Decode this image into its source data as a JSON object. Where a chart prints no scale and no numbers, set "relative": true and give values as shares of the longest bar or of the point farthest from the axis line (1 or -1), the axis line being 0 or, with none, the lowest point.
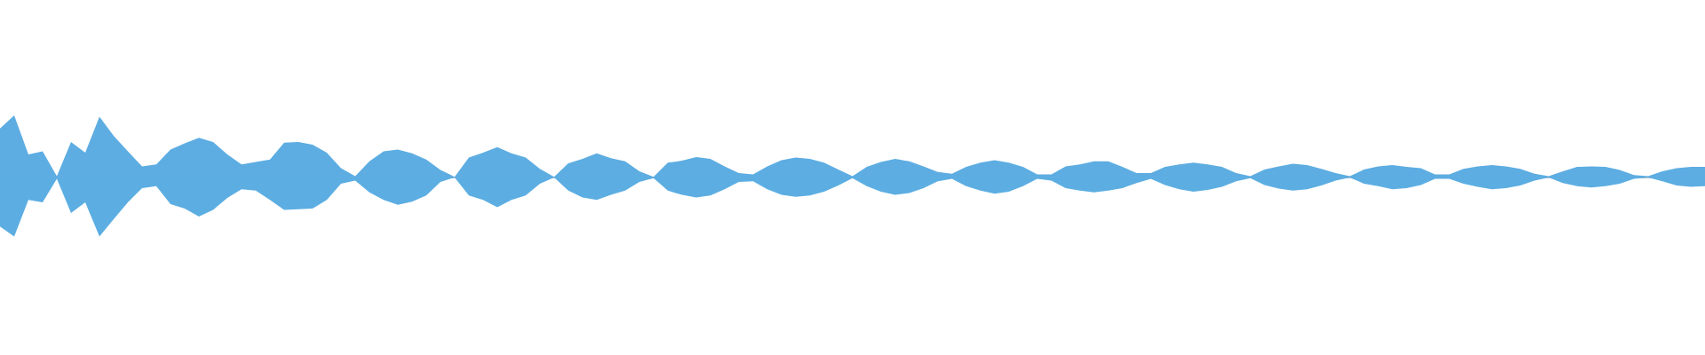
{
  "chart_data": {
    "type": "area",
    "relative": true,
    "categories": [
      null,
      null,
      null,
      null,
      null,
      null,
      null,
      null,
      null,
      null,
      null,
      null,
      null,
      null,
      null,
      null,
      null,
      null,
      null,
      null,
      null,
      null,
      null,
      null,
      null,
      null,
      null,
      null,
      null,
      null,
      null,
      null,
      null,
      null,
      null,
      null,
      null,
      null,
      null,
      null,
      null,
      null,
      null,
      null,
      null,
      null,
      null,
      null,
      null,
      null,
      null,
      null,
      null,
      null,
      null,
      null,
      null,
      null,
      null,
      null,
      null,
      null,
      null,
      null,
      null,
      null,
      null,
      null,
      null,
      null,
      null,
      null,
      null,
      null,
      null,
      null,
      null,
      null,
      null,
      null,
      null,
      null,
      null,
      null,
      null,
      null,
      null,
      null,
      null,
      null,
      null,
      null,
      null,
      null,
      null,
      null,
      null,
      null,
      null,
      null,
      null,
      null,
      null,
      null,
      null,
      null,
      null,
      null,
      null,
      null,
      null,
      null,
      null,
      null,
      null,
      null,
      null,
      null,
      null,
      null,
      null
    ],
    "series": [
      {
        "color": "#5dade2",
        "values": [
          0.79,
          1.0,
          0.37,
          0.42,
          0.02,
          0.57,
          0.4,
          0.98,
          0.67,
          0.42,
          0.18,
          0.21,
          0.45,
          0.55,
          0.64,
          0.57,
          0.37,
          0.21,
          0.25,
          0.29,
          0.56,
          0.57,
          0.53,
          0.4,
          0.15,
          0.02,
          0.26,
          0.42,
          0.45,
          0.39,
          0.29,
          0.12,
          0.01,
          0.32,
          0.4,
          0.49,
          0.39,
          0.32,
          0.14,
          0.01,
          0.23,
          0.3,
          0.39,
          0.31,
          0.26,
          0.1,
          0.01,
          0.24,
          0.27,
          0.33,
          0.3,
          0.18,
          0.07,
          0.05,
          0.18,
          0.28,
          0.32,
          0.3,
          0.24,
          0.13,
          0.02,
          0.17,
          0.25,
          0.3,
          0.26,
          0.18,
          0.09,
          0.06,
          0.17,
          0.24,
          0.28,
          0.24,
          0.17,
          0.05,
          0.05,
          0.18,
          0.21,
          0.26,
          0.26,
          0.17,
          0.07,
          0.07,
          0.17,
          0.21,
          0.24,
          0.21,
          0.17,
          0.07,
          0.02,
          0.13,
          0.18,
          0.22,
          0.2,
          0.14,
          0.07,
          0.02,
          0.13,
          0.18,
          0.2,
          0.17,
          0.15,
          0.05,
          0.05,
          0.14,
          0.18,
          0.2,
          0.18,
          0.14,
          0.06,
          0.02,
          0.1,
          0.17,
          0.18,
          0.17,
          0.12,
          0.04,
          0.02,
          0.1,
          0.15,
          0.17,
          0.17
        ]
      },
      {
        "color": "#5caee2",
        "values": [
          -0.79,
          -0.95,
          -0.36,
          -0.4,
          -0.02,
          -0.57,
          -0.4,
          -0.95,
          -0.67,
          -0.4,
          -0.17,
          -0.14,
          -0.43,
          -0.5,
          -0.63,
          -0.52,
          -0.33,
          -0.19,
          -0.21,
          -0.36,
          -0.52,
          -0.51,
          -0.5,
          -0.36,
          -0.1,
          -0.05,
          -0.24,
          -0.36,
          -0.44,
          -0.39,
          -0.29,
          -0.07,
          0,
          -0.29,
          -0.36,
          -0.48,
          -0.36,
          -0.29,
          -0.1,
          0,
          -0.21,
          -0.32,
          -0.36,
          -0.28,
          -0.21,
          -0.07,
          -0.01,
          -0.21,
          -0.28,
          -0.32,
          -0.29,
          -0.19,
          -0.07,
          -0.06,
          -0.19,
          -0.28,
          -0.31,
          -0.29,
          -0.23,
          -0.13,
          -0.01,
          -0.14,
          -0.23,
          -0.28,
          -0.25,
          -0.17,
          -0.06,
          -0.02,
          -0.14,
          -0.21,
          -0.26,
          -0.23,
          -0.14,
          -0.02,
          -0.05,
          -0.17,
          -0.21,
          -0.24,
          -0.21,
          -0.17,
          -0.09,
          -0.02,
          -0.12,
          -0.19,
          -0.23,
          -0.2,
          -0.15,
          -0.06,
          -0.01,
          -0.12,
          -0.18,
          -0.21,
          -0.19,
          -0.13,
          -0.05,
          0,
          -0.1,
          -0.14,
          -0.19,
          -0.17,
          -0.12,
          -0.02,
          -0.02,
          -0.1,
          -0.15,
          -0.19,
          -0.17,
          -0.13,
          -0.05,
          0,
          -0.09,
          -0.14,
          -0.16,
          -0.14,
          -0.1,
          -0.02,
          0,
          -0.06,
          -0.13,
          -0.15,
          -0.14
        ]
      }
    ]
  }
}
